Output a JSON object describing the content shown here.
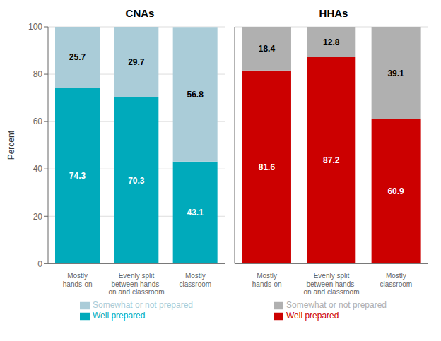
{
  "chart_data": [
    {
      "type": "bar",
      "title": "CNAs",
      "ylabel": "Percent",
      "categories": [
        "Mostly\nhands-on",
        "Evenly split\nbetween hands-\non and classroom",
        "Mostly\nclassroom"
      ],
      "series": [
        {
          "name": "Well prepared",
          "color": "#00AABB",
          "values": [
            74.3,
            70.3,
            43.1
          ]
        },
        {
          "name": "Somewhat or not prepared",
          "color": "#AACCD8",
          "values": [
            25.7,
            29.7,
            56.8
          ]
        }
      ],
      "stacked": true,
      "data_labels": true,
      "ylim": [
        0,
        100
      ],
      "yticks": [
        0,
        20,
        40,
        60,
        80,
        100
      ],
      "grid": true,
      "legend": "bottom"
    },
    {
      "type": "bar",
      "title": "HHAs",
      "categories": [
        "Mostly\nhands-on",
        "Evenly split\nbetween hands-\non and classroom",
        "Mostly\nclassroom"
      ],
      "series": [
        {
          "name": "Well prepared",
          "color": "#CC0000",
          "values": [
            81.6,
            87.2,
            60.9
          ]
        },
        {
          "name": "Somewhat or not prepared",
          "color": "#B0B0B0",
          "values": [
            18.4,
            12.8,
            39.1
          ]
        }
      ],
      "stacked": true,
      "data_labels": true,
      "ylim": [
        0,
        100
      ],
      "yticks": [
        0,
        20,
        40,
        60,
        80,
        100
      ],
      "grid": true,
      "legend": "bottom",
      "tick_labels": "x"
    }
  ]
}
